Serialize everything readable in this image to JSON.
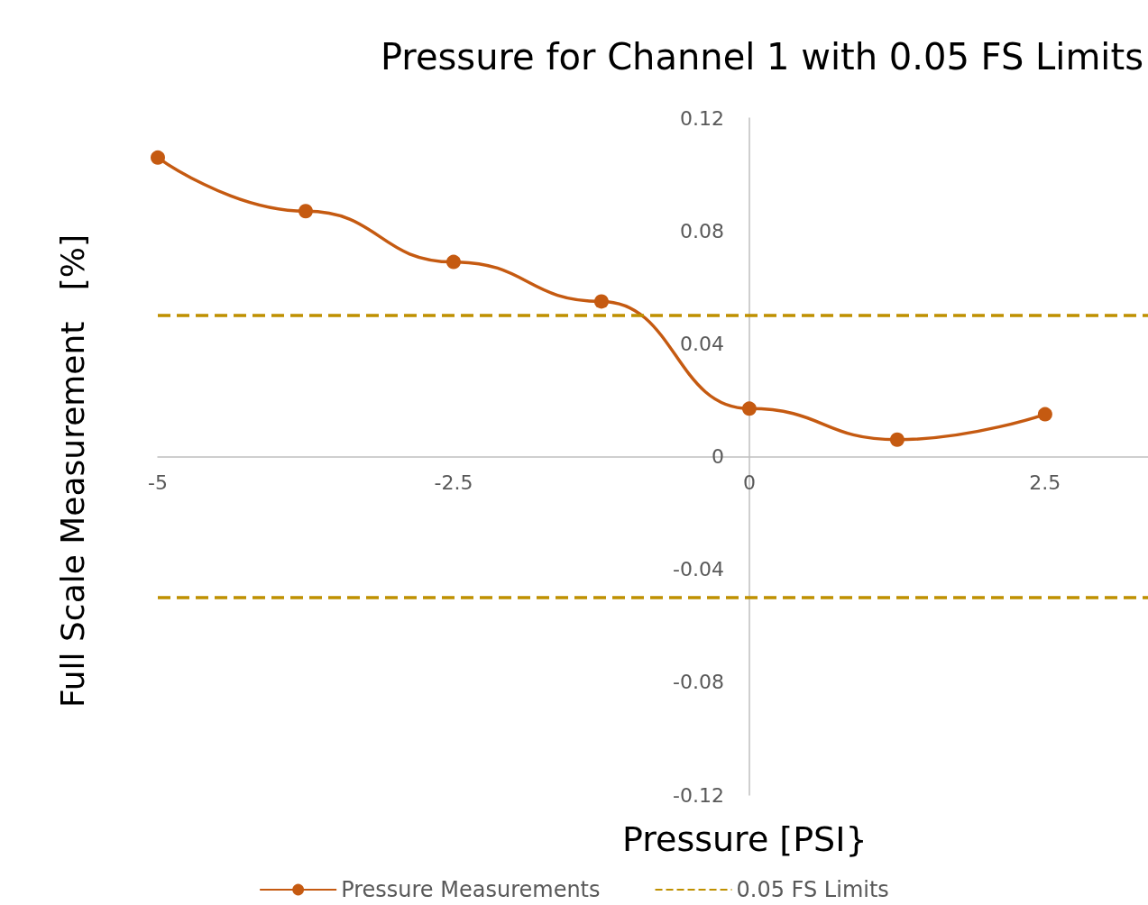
{
  "chart_data": {
    "type": "line",
    "title": "Pressure for Channel 1 with 0.05 FS Limits",
    "xlabel": "Pressure [PSI}",
    "ylabel": "Full Scale Measurement   [%]",
    "x": [
      -5,
      -3.75,
      -2.5,
      -1.25,
      0,
      1.25,
      2.5
    ],
    "series": [
      {
        "name": "Pressure Measurements",
        "color": "#c55a11",
        "values": [
          0.106,
          0.087,
          0.069,
          0.055,
          0.017,
          0.006,
          0.015
        ]
      }
    ],
    "xlim": [
      -5,
      3.37
    ],
    "xticks": [
      -5,
      -2.5,
      0,
      2.5
    ],
    "ylim": [
      -0.12,
      0.12
    ],
    "yticks": [
      -0.12,
      -0.08,
      -0.04,
      0,
      0.04,
      0.08,
      0.12
    ],
    "ref_lines": [
      {
        "axis": "y",
        "value": 0.05,
        "label": "0.05 FS Limits",
        "color": "#bf9000",
        "line_style": "dashed"
      },
      {
        "axis": "y",
        "value": -0.05,
        "color": "#bf9000",
        "line_style": "dashed"
      }
    ],
    "legend": "bottom",
    "marker": "circle",
    "line_style": "solid"
  }
}
